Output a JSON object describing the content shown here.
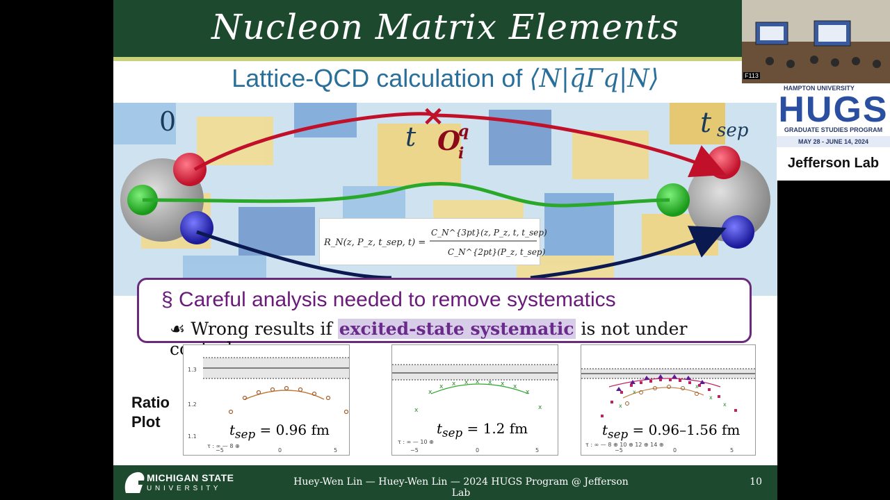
{
  "slide": {
    "title": "Nucleon Matrix Elements",
    "subtitle_prefix": "Lattice-QCD calculation of ",
    "subtitle_math": "⟨N|q̄Γq|N⟩",
    "diagram": {
      "label_zero": "0",
      "label_t": "t",
      "label_op": "O",
      "label_op_sup": "q",
      "label_op_sub": "i",
      "label_tsep": "t",
      "label_tsep_sub": "sep",
      "formula_lhs": "R_N(z, P_z, t_sep, t) =",
      "formula_num": "C_N^{3pt}(z, P_z, t, t_sep)",
      "formula_den": "C_N^{2pt}(P_z, t_sep)"
    },
    "callout": {
      "bullet": "§",
      "main": "Careful analysis needed to remove systematics",
      "sub_icon": "ornament-icon",
      "sub_prefix": "Wrong results if ",
      "sub_highlight": "excited-state systematic",
      "sub_suffix": " is not under control"
    },
    "ratio_label_line1": "Ratio",
    "ratio_label_line2": "Plot",
    "panels": [
      {
        "tsep": "= 0.96 fm",
        "legend": "τ : ∞ —   8 ⊕"
      },
      {
        "tsep": "= 1.2 fm",
        "legend": "τ : ∞ —   10 ⊕"
      },
      {
        "tsep": "= 0.96–1.56 fm",
        "legend": "τ : ∞ —   8 ⊕   10 ⊕   12 ⊕   14 ⊕"
      }
    ],
    "panel_y_ticks": [
      "1.3",
      "1.2",
      "1.1"
    ],
    "panel_x_ticks": [
      "−5",
      "0",
      "5"
    ],
    "tsep_symbol": "t",
    "tsep_sub": "sep",
    "footer": {
      "logo_line1": "MICHIGAN STATE",
      "logo_line2": "U N I V E R S I T Y",
      "text": "Huey-Wen Lin — Huey-Wen Lin — 2024 HUGS Program @ Jefferson Lab",
      "page": "10"
    }
  },
  "camera": {
    "room_label": "F113"
  },
  "sponsor": {
    "line1": "HAMPTON UNIVERSITY",
    "logo": "HUGS",
    "line2": "GRADUATE STUDIES PROGRAM",
    "dates": "MAY 28 - JUNE 14, 2024",
    "lab": "Jefferson Lab"
  },
  "colors": {
    "msu_green": "#1d4a2f",
    "accent_purple": "#6a1a7a",
    "title_blue": "#2a6f9a"
  }
}
